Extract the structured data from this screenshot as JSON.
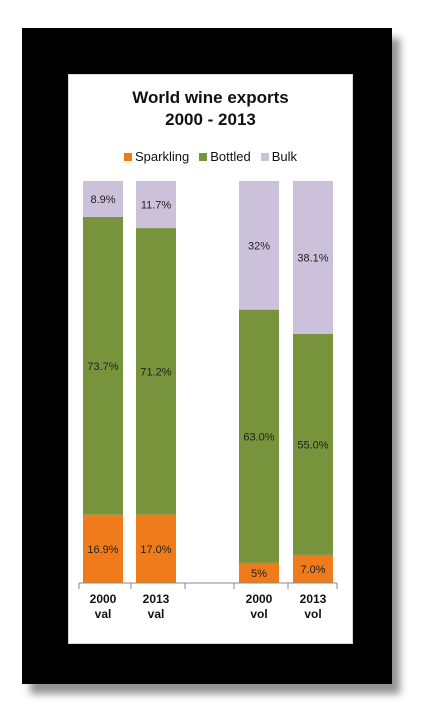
{
  "chart_data": {
    "type": "bar",
    "stacked": true,
    "normalized": true,
    "title_lines": [
      "World wine exports",
      "2000 - 2013"
    ],
    "categories": [
      {
        "line1": "2000",
        "line2": "val"
      },
      {
        "line1": "2013",
        "line2": "val"
      },
      {
        "line1": "2000",
        "line2": "vol"
      },
      {
        "line1": "2013",
        "line2": "vol"
      }
    ],
    "series": [
      {
        "name": "Sparkling",
        "color": "#f07b1b",
        "values": [
          16.9,
          17.0,
          5,
          7.0
        ],
        "labels": [
          "16.9%",
          "17.0%",
          "5%",
          "7.0%"
        ]
      },
      {
        "name": "Bottled",
        "color": "#77933c",
        "values": [
          73.7,
          71.2,
          63.0,
          55.0
        ],
        "labels": [
          "73.7%",
          "71.2%",
          "63.0%",
          "55.0%"
        ]
      },
      {
        "name": "Bulk",
        "color": "#ccc1da",
        "values": [
          8.9,
          11.7,
          32,
          38.1
        ],
        "labels": [
          "8.9%",
          "11.7%",
          "32%",
          "38.1%"
        ]
      }
    ],
    "legend_position": "top",
    "grid": false
  }
}
